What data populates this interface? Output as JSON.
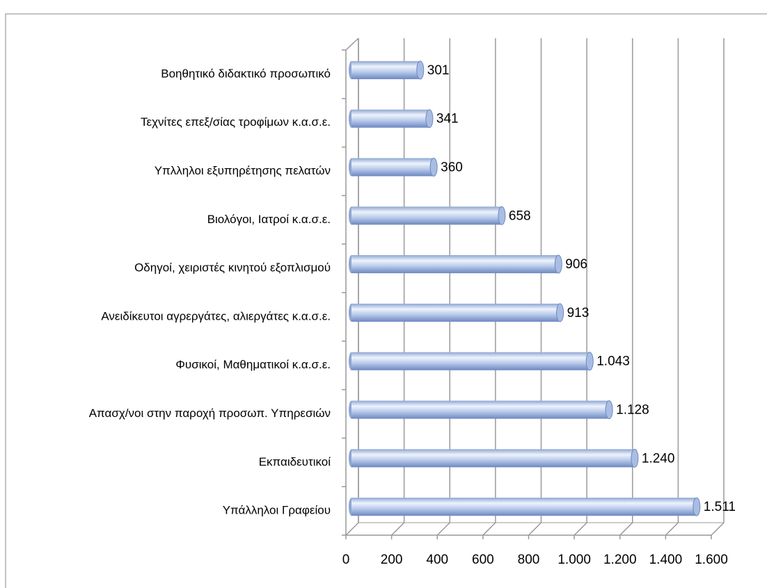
{
  "chart_data": {
    "type": "bar",
    "orientation": "horizontal",
    "categories": [
      "Βοηθητικό διδακτικό προσωπικό",
      "Τεχνίτες επεξ/σίας τροφίμων κ.α.σ.ε.",
      "Υπλληλοι εξυπηρέτησης πελατών",
      "Βιολόγοι, Ιατροί κ.α.σ.ε.",
      "Οδηγοί, χειριστές κινητού εξοπλισμού",
      "Ανειδίκευτοι αγρεργάτες, αλιεργάτες κ.α.σ.ε.",
      "Φυσικοί, Μαθηματικοί κ.α.σ.ε.",
      "Απασχ/νοι στην παροχή προσωπ. Υπηρεσιών",
      "Εκπαιδευτικοί",
      "Υπάλληλοι Γραφείου"
    ],
    "values": [
      301,
      341,
      360,
      658,
      906,
      913,
      1043,
      1128,
      1240,
      1511
    ],
    "value_labels": [
      "301",
      "341",
      "360",
      "658",
      "906",
      "913",
      "1.043",
      "1.128",
      "1.240",
      "1.511"
    ],
    "color": "#b9cbeb",
    "xlim": [
      0,
      1600
    ],
    "xticks": [
      0,
      200,
      400,
      600,
      800,
      {
        "value": 1000,
        "label": "1.000"
      },
      {
        "value": 1200,
        "label": "1.200"
      },
      {
        "value": 1400,
        "label": "1.400"
      },
      {
        "value": 1600,
        "label": "1.600"
      }
    ],
    "grid": true
  }
}
